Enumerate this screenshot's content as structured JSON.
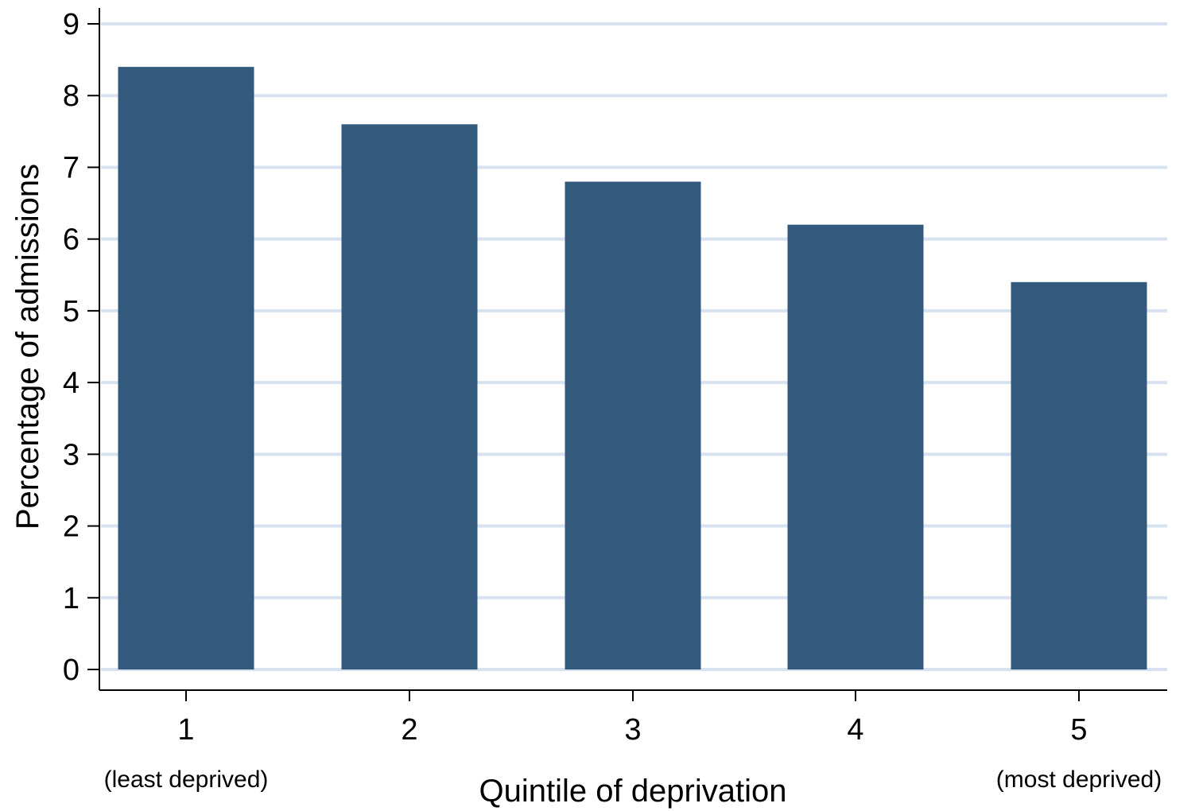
{
  "chart_data": {
    "type": "bar",
    "title": "",
    "xlabel": "Quintile of deprivation",
    "ylabel": "Percentage of admissions",
    "categories": [
      "1",
      "2",
      "3",
      "4",
      "5"
    ],
    "category_sublabels": [
      "(least deprived)",
      "",
      "",
      "",
      "(most deprived)"
    ],
    "values": [
      8.4,
      7.6,
      6.8,
      6.2,
      5.4
    ],
    "ylim": [
      0,
      9
    ],
    "yticks": [
      "0",
      "1",
      "2",
      "3",
      "4",
      "5",
      "6",
      "7",
      "8",
      "9"
    ],
    "grid": true,
    "legend": "none",
    "colors": {
      "bar": "#335A7C",
      "grid": "#D6E2F0",
      "axis": "#000000"
    }
  }
}
